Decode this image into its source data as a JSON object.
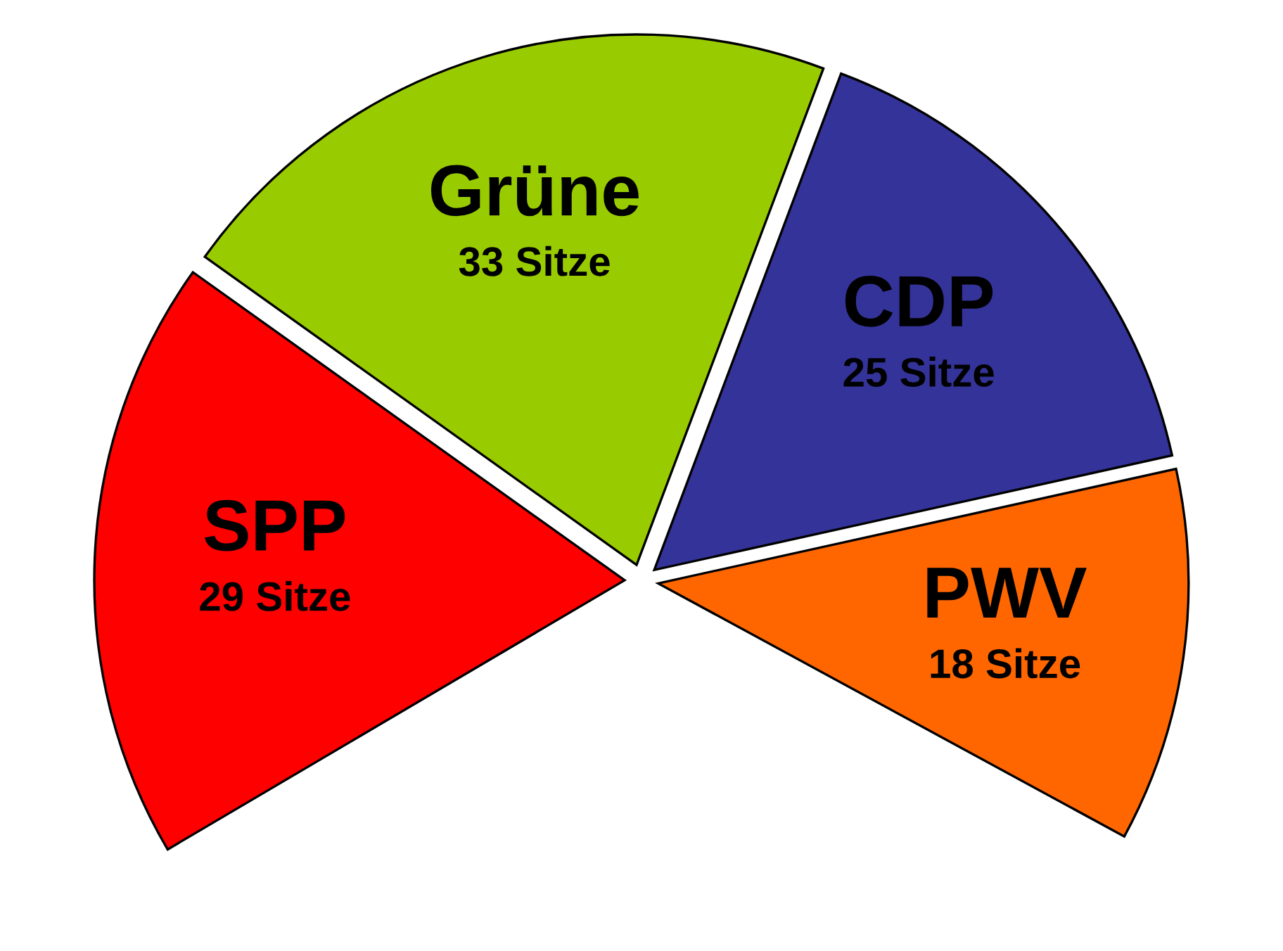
{
  "chart_data": {
    "type": "pie",
    "categories": [
      "SPP",
      "Grüne",
      "CDP",
      "PWV"
    ],
    "values": [
      29,
      33,
      25,
      18
    ],
    "colors": [
      "#ff0000",
      "#99cc00",
      "#333399",
      "#ff6600"
    ],
    "value_labels": [
      "29 Sitze",
      "33 Sitze",
      "25 Sitze",
      "18 Sitze"
    ],
    "legend": false
  }
}
